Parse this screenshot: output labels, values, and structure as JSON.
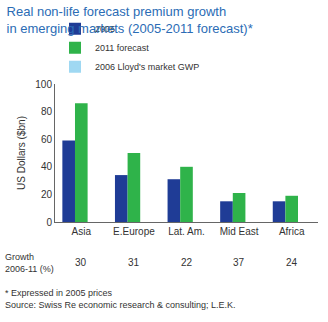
{
  "chart_data": {
    "type": "bar",
    "title": [
      "Real non-life forecast premium growth",
      "in emerging markets (2005-2011 forecast)*"
    ],
    "y_label": "US Dollars ($bn)",
    "categories": [
      "Asia",
      "E.Europe",
      "Lat. Am.",
      "Mid East",
      "Africa"
    ],
    "series": [
      {
        "name": "2005",
        "color": "#1f3c96",
        "values": [
          59,
          34,
          31,
          15,
          15
        ]
      },
      {
        "name": "2011 forecast",
        "color": "#2fb34a",
        "values": [
          86,
          50,
          40,
          21,
          19
        ]
      },
      {
        "name": "2006 Lloyd's market GWP",
        "color": "#9fd8f2",
        "values": [
          null,
          null,
          null,
          null,
          null
        ]
      }
    ],
    "growth": {
      "label": [
        "Growth",
        "2006-11 (%)"
      ],
      "values": [
        30,
        31,
        22,
        37,
        24
      ]
    },
    "notes": [
      "* Expressed in 2005 prices",
      "Source: Swiss Re economic research & consulting; L.E.K."
    ],
    "ylim": [
      0,
      100
    ],
    "yticks": [
      0,
      20,
      40,
      60,
      80,
      100
    ],
    "grid": false,
    "legend": "top"
  }
}
